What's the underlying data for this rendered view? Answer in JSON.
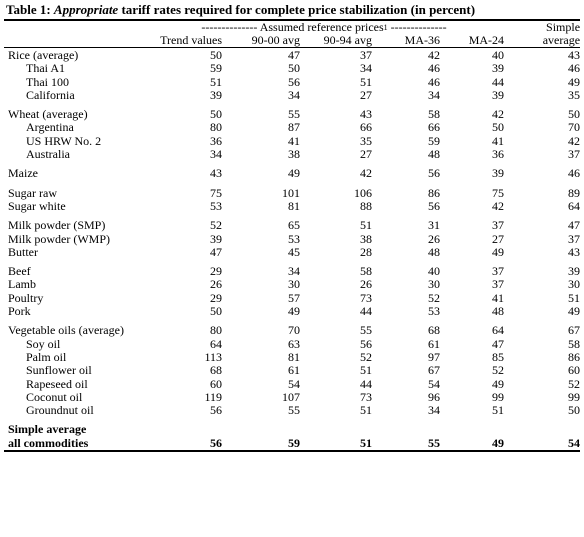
{
  "title": {
    "prefix": "Table 1:",
    "italic": "Appropriate",
    "rest": "tariff rates required for complete price stabilization (in  percent)"
  },
  "header": {
    "span_label": "-------------- Assumed reference prices",
    "span_footnote": "1",
    "span_tail": "--------------",
    "simple_top": "Simple",
    "columns": [
      "Trend values",
      "90-00 avg",
      "90-94 avg",
      "MA-36",
      "MA-24",
      "average"
    ]
  },
  "rows": [
    {
      "label": "Rice (average)",
      "indent": false,
      "values": [
        "50",
        "47",
        "37",
        "42",
        "40",
        "43"
      ]
    },
    {
      "label": "Thai A1",
      "indent": true,
      "values": [
        "59",
        "50",
        "34",
        "46",
        "39",
        "46"
      ]
    },
    {
      "label": "Thai 100",
      "indent": true,
      "values": [
        "51",
        "56",
        "51",
        "46",
        "44",
        "49"
      ]
    },
    {
      "label": "California",
      "indent": true,
      "values": [
        "39",
        "34",
        "27",
        "34",
        "39",
        "35"
      ]
    },
    {
      "gap": true
    },
    {
      "label": "Wheat (average)",
      "indent": false,
      "values": [
        "50",
        "55",
        "43",
        "58",
        "42",
        "50"
      ]
    },
    {
      "label": "Argentina",
      "indent": true,
      "values": [
        "80",
        "87",
        "66",
        "66",
        "50",
        "70"
      ]
    },
    {
      "label": "US HRW No. 2",
      "indent": true,
      "values": [
        "36",
        "41",
        "35",
        "59",
        "41",
        "42"
      ]
    },
    {
      "label": "Australia",
      "indent": true,
      "values": [
        "34",
        "38",
        "27",
        "48",
        "36",
        "37"
      ]
    },
    {
      "gap": true
    },
    {
      "label": "Maize",
      "indent": false,
      "values": [
        "43",
        "49",
        "42",
        "56",
        "39",
        "46"
      ]
    },
    {
      "gap": true
    },
    {
      "label": "Sugar raw",
      "indent": false,
      "values": [
        "75",
        "101",
        "106",
        "86",
        "75",
        "89"
      ]
    },
    {
      "label": "Sugar white",
      "indent": false,
      "values": [
        "53",
        "81",
        "88",
        "56",
        "42",
        "64"
      ]
    },
    {
      "gap": true
    },
    {
      "label": "Milk powder (SMP)",
      "indent": false,
      "values": [
        "52",
        "65",
        "51",
        "31",
        "37",
        "47"
      ]
    },
    {
      "label": "Milk powder (WMP)",
      "indent": false,
      "values": [
        "39",
        "53",
        "38",
        "26",
        "27",
        "37"
      ]
    },
    {
      "label": "Butter",
      "indent": false,
      "values": [
        "47",
        "45",
        "28",
        "48",
        "49",
        "43"
      ]
    },
    {
      "gap": true
    },
    {
      "label": "Beef",
      "indent": false,
      "values": [
        "29",
        "34",
        "58",
        "40",
        "37",
        "39"
      ]
    },
    {
      "label": "Lamb",
      "indent": false,
      "values": [
        "26",
        "30",
        "26",
        "30",
        "37",
        "30"
      ]
    },
    {
      "label": "Poultry",
      "indent": false,
      "values": [
        "29",
        "57",
        "73",
        "52",
        "41",
        "51"
      ]
    },
    {
      "label": "Pork",
      "indent": false,
      "values": [
        "50",
        "49",
        "44",
        "53",
        "48",
        "49"
      ]
    },
    {
      "gap": true
    },
    {
      "label": "Vegetable oils (average)",
      "indent": false,
      "values": [
        "80",
        "70",
        "55",
        "68",
        "64",
        "67"
      ]
    },
    {
      "label": "Soy oil",
      "indent": true,
      "values": [
        "64",
        "63",
        "56",
        "61",
        "47",
        "58"
      ]
    },
    {
      "label": "Palm oil",
      "indent": true,
      "values": [
        "113",
        "81",
        "52",
        "97",
        "85",
        "86"
      ]
    },
    {
      "label": "Sunflower oil",
      "indent": true,
      "values": [
        "68",
        "61",
        "51",
        "67",
        "52",
        "60"
      ]
    },
    {
      "label": "Rapeseed oil",
      "indent": true,
      "values": [
        "60",
        "54",
        "44",
        "54",
        "49",
        "52"
      ]
    },
    {
      "label": "Coconut oil",
      "indent": true,
      "values": [
        "119",
        "107",
        "73",
        "96",
        "99",
        "99"
      ]
    },
    {
      "label": "Groundnut oil",
      "indent": true,
      "values": [
        "56",
        "55",
        "51",
        "34",
        "51",
        "50"
      ]
    },
    {
      "gap": true
    }
  ],
  "summary": {
    "label_line1": "Simple average",
    "label_line2": "all commodities",
    "values": [
      "56",
      "59",
      "51",
      "55",
      "49",
      "54"
    ]
  }
}
